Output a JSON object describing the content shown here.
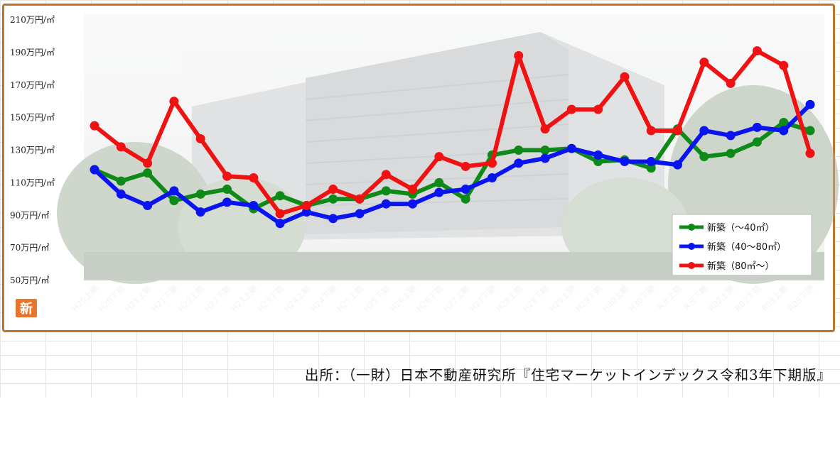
{
  "badge": "新",
  "source": "出所：（一財）日本不動産研究所『住宅マーケットインデックス令和3年下期版』",
  "chart_data": {
    "type": "line",
    "title": "",
    "xlabel": "",
    "ylabel": "",
    "ylim": [
      50,
      210
    ],
    "y_ticks": [
      "210万円/㎡",
      "190万円/㎡",
      "170万円/㎡",
      "150万円/㎡",
      "130万円/㎡",
      "110万円/㎡",
      "90万円/㎡",
      "70万円/㎡",
      "50万円/㎡"
    ],
    "y_tick_values": [
      210,
      190,
      170,
      150,
      130,
      110,
      90,
      70,
      50
    ],
    "categories": [
      "H20上期",
      "H20下期",
      "H21上期",
      "H21下期",
      "H22上期",
      "H22下期",
      "H23上期",
      "H23下期",
      "H24上期",
      "H24下期",
      "H25上期",
      "H25下期",
      "H26上期",
      "H26下期",
      "H27上期",
      "H27下期",
      "H28上期",
      "H28下期",
      "H29上期",
      "H29下期",
      "H30上期",
      "H30下期",
      "R元上期",
      "R元下期",
      "R02上期",
      "R02下期",
      "R03上期",
      "R03下期"
    ],
    "legend_position": "bottom-right",
    "series": [
      {
        "name": "新築（～40㎡）",
        "color": "#0e8a18",
        "values": [
          118,
          111,
          116,
          99,
          103,
          106,
          94,
          102,
          96,
          100,
          100,
          105,
          103,
          110,
          100,
          127,
          130,
          130,
          131,
          123,
          124,
          119,
          143,
          126,
          128,
          135,
          147,
          142
        ]
      },
      {
        "name": "新築（40～80㎡）",
        "color": "#0a14f0",
        "values": [
          118,
          103,
          96,
          105,
          92,
          98,
          96,
          85,
          92,
          88,
          91,
          97,
          97,
          104,
          106,
          113,
          122,
          125,
          131,
          127,
          123,
          123,
          121,
          142,
          139,
          144,
          142,
          158
        ]
      },
      {
        "name": "新築（80㎡～）",
        "color": "#f01212",
        "values": [
          145,
          132,
          122,
          160,
          137,
          114,
          113,
          91,
          96,
          106,
          100,
          115,
          106,
          126,
          120,
          122,
          188,
          143,
          155,
          155,
          175,
          142,
          142,
          184,
          171,
          191,
          182,
          128
        ]
      }
    ]
  }
}
